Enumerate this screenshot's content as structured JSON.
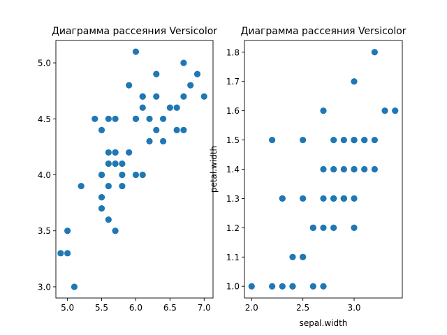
{
  "chart_data": [
    {
      "type": "scatter",
      "title": "Диаграмма рассеяния Versicolor",
      "xlabel": "",
      "ylabel": "",
      "xlim": [
        4.83,
        7.13
      ],
      "ylim": [
        2.9,
        5.2
      ],
      "xticks": [
        5.0,
        5.5,
        6.0,
        6.5,
        7.0
      ],
      "xtick_labels": [
        "5.0",
        "5.5",
        "6.0",
        "6.5",
        "7.0"
      ],
      "yticks": [
        3.0,
        3.5,
        4.0,
        4.5,
        5.0
      ],
      "ytick_labels": [
        "3.0",
        "3.5",
        "4.0",
        "4.5",
        "5.0"
      ],
      "grid": false,
      "color": "#1f77b4",
      "points": [
        [
          7.0,
          4.7
        ],
        [
          6.4,
          4.5
        ],
        [
          6.9,
          4.9
        ],
        [
          5.5,
          4.0
        ],
        [
          6.5,
          4.6
        ],
        [
          5.7,
          4.5
        ],
        [
          6.3,
          4.7
        ],
        [
          4.9,
          3.3
        ],
        [
          6.6,
          4.6
        ],
        [
          5.2,
          3.9
        ],
        [
          5.0,
          3.5
        ],
        [
          5.9,
          4.2
        ],
        [
          6.0,
          4.0
        ],
        [
          6.1,
          4.7
        ],
        [
          5.6,
          3.6
        ],
        [
          6.7,
          4.4
        ],
        [
          5.6,
          4.5
        ],
        [
          5.8,
          4.1
        ],
        [
          6.2,
          4.5
        ],
        [
          5.6,
          3.9
        ],
        [
          5.9,
          4.8
        ],
        [
          6.1,
          4.0
        ],
        [
          6.3,
          4.9
        ],
        [
          6.1,
          4.7
        ],
        [
          6.4,
          4.3
        ],
        [
          6.6,
          4.4
        ],
        [
          6.8,
          4.8
        ],
        [
          6.7,
          5.0
        ],
        [
          6.0,
          4.5
        ],
        [
          5.7,
          3.5
        ],
        [
          5.5,
          3.8
        ],
        [
          5.5,
          3.7
        ],
        [
          5.8,
          3.9
        ],
        [
          6.0,
          5.1
        ],
        [
          5.4,
          4.5
        ],
        [
          6.0,
          4.5
        ],
        [
          6.7,
          4.7
        ],
        [
          6.3,
          4.4
        ],
        [
          5.6,
          4.1
        ],
        [
          5.5,
          4.0
        ],
        [
          5.5,
          4.4
        ],
        [
          6.1,
          4.6
        ],
        [
          5.8,
          4.0
        ],
        [
          5.0,
          3.3
        ],
        [
          5.6,
          4.2
        ],
        [
          5.7,
          4.2
        ],
        [
          5.7,
          4.2
        ],
        [
          6.2,
          4.3
        ],
        [
          5.1,
          3.0
        ],
        [
          5.7,
          4.1
        ]
      ]
    },
    {
      "type": "scatter",
      "title": "Диаграмма рассеяния Versicolor",
      "xlabel": "sepal.width",
      "ylabel": "petal.width",
      "xlim": [
        1.93,
        3.47
      ],
      "ylim": [
        0.96,
        1.84
      ],
      "xticks": [
        2.0,
        2.5,
        3.0
      ],
      "xtick_labels": [
        "2.0",
        "2.5",
        "3.0"
      ],
      "yticks": [
        1.0,
        1.1,
        1.2,
        1.3,
        1.4,
        1.5,
        1.6,
        1.7,
        1.8
      ],
      "ytick_labels": [
        "1.0",
        "1.1",
        "1.2",
        "1.3",
        "1.4",
        "1.5",
        "1.6",
        "1.7",
        "1.8"
      ],
      "grid": false,
      "color": "#1f77b4",
      "points": [
        [
          3.2,
          1.4
        ],
        [
          3.2,
          1.5
        ],
        [
          3.1,
          1.5
        ],
        [
          2.3,
          1.3
        ],
        [
          2.8,
          1.5
        ],
        [
          2.8,
          1.3
        ],
        [
          3.3,
          1.6
        ],
        [
          2.4,
          1.0
        ],
        [
          2.9,
          1.3
        ],
        [
          2.7,
          1.4
        ],
        [
          2.0,
          1.0
        ],
        [
          3.0,
          1.5
        ],
        [
          2.2,
          1.0
        ],
        [
          2.9,
          1.4
        ],
        [
          2.9,
          1.3
        ],
        [
          3.1,
          1.4
        ],
        [
          3.0,
          1.5
        ],
        [
          2.7,
          1.0
        ],
        [
          2.2,
          1.5
        ],
        [
          2.5,
          1.1
        ],
        [
          3.2,
          1.8
        ],
        [
          2.8,
          1.3
        ],
        [
          2.5,
          1.5
        ],
        [
          2.8,
          1.2
        ],
        [
          2.9,
          1.3
        ],
        [
          3.0,
          1.4
        ],
        [
          2.8,
          1.4
        ],
        [
          3.0,
          1.7
        ],
        [
          2.9,
          1.5
        ],
        [
          2.6,
          1.0
        ],
        [
          2.4,
          1.1
        ],
        [
          2.4,
          1.0
        ],
        [
          2.7,
          1.2
        ],
        [
          2.7,
          1.6
        ],
        [
          3.0,
          1.5
        ],
        [
          3.4,
          1.6
        ],
        [
          3.1,
          1.5
        ],
        [
          2.3,
          1.3
        ],
        [
          3.0,
          1.3
        ],
        [
          2.5,
          1.3
        ],
        [
          2.6,
          1.2
        ],
        [
          3.0,
          1.4
        ],
        [
          2.6,
          1.2
        ],
        [
          2.3,
          1.0
        ],
        [
          2.7,
          1.3
        ],
        [
          3.0,
          1.2
        ],
        [
          2.9,
          1.3
        ],
        [
          2.9,
          1.3
        ],
        [
          2.5,
          1.1
        ],
        [
          2.8,
          1.3
        ]
      ]
    }
  ]
}
